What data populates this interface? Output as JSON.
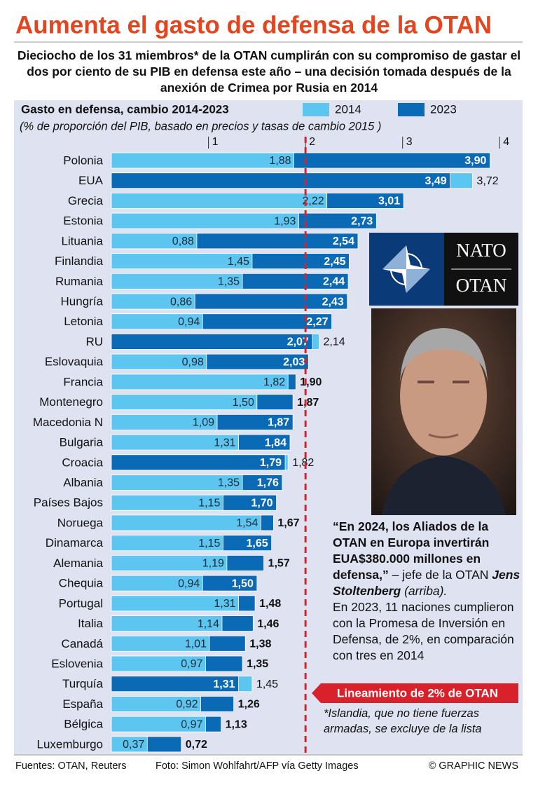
{
  "chart_data": {
    "type": "bar",
    "title": "Aumenta el gasto de defensa de la OTAN",
    "subtitle": "Dieciocho de los 31 miembros* de la OTAN cumplirán con su compromiso de gastar el dos por ciento de su PIB en defensa este año – una decisión tomada después de la anexión de Crimea por Rusia en 2014",
    "axis_title": "Gasto en defensa, cambio 2014-2023",
    "axis_note": "(% de proporción del PIB, basado en  precios y tasas de cambio 2015 )",
    "categories": [
      "Polonia",
      "EUA",
      "Grecia",
      "Estonia",
      "Lituania",
      "Finlandia",
      "Rumania",
      "Hungría",
      "Letonia",
      "RU",
      "Eslovaquia",
      "Francia",
      "Montenegro",
      "Macedonia N",
      "Bulgaria",
      "Croacia",
      "Albania",
      "Países Bajos",
      "Noruega",
      "Dinamarca",
      "Alemania",
      "Chequia",
      "Portugal",
      "Italia",
      "Canadá",
      "Eslovenia",
      "Turquía",
      "España",
      "Bélgica",
      "Luxemburgo"
    ],
    "series": [
      {
        "name": "2014",
        "color": "#5cc6f0",
        "values": [
          1.88,
          3.72,
          2.22,
          1.93,
          0.88,
          1.45,
          1.35,
          0.86,
          0.94,
          2.14,
          0.98,
          1.82,
          1.5,
          1.09,
          1.31,
          1.82,
          1.35,
          1.15,
          1.54,
          1.15,
          1.19,
          0.94,
          1.31,
          1.14,
          1.01,
          0.97,
          1.45,
          0.92,
          0.97,
          0.37
        ],
        "value_labels": [
          "1,88",
          "3,72",
          "2,22",
          "1,93",
          "0,88",
          "1,45",
          "1,35",
          "0,86",
          "0,94",
          "2,14",
          "0,98",
          "1,82",
          "1,50",
          "1,09",
          "1,31",
          "1,82",
          "1,35",
          "1,15",
          "1,54",
          "1,15",
          "1,19",
          "0,94",
          "1,31",
          "1,14",
          "1,01",
          "0,97",
          "1,45",
          "0,92",
          "0,97",
          "0,37"
        ]
      },
      {
        "name": "2023",
        "color": "#0b6ab5",
        "values": [
          3.9,
          3.49,
          3.01,
          2.73,
          2.54,
          2.45,
          2.44,
          2.43,
          2.27,
          2.07,
          2.03,
          1.9,
          1.87,
          1.87,
          1.84,
          1.79,
          1.76,
          1.7,
          1.67,
          1.65,
          1.57,
          1.5,
          1.48,
          1.46,
          1.38,
          1.35,
          1.31,
          1.26,
          1.13,
          0.72
        ],
        "value_labels": [
          "3,90",
          "3,49",
          "3,01",
          "2,73",
          "2,54",
          "2,45",
          "2,44",
          "2,43",
          "2,27",
          "2,07",
          "2,03",
          "1,90",
          "1,87",
          "1,87",
          "1,84",
          "1,79",
          "1,76",
          "1,70",
          "1,67",
          "1,65",
          "1,57",
          "1,50",
          "1,48",
          "1,46",
          "1,38",
          "1,35",
          "1,31",
          "1,26",
          "1,13",
          "0,72"
        ]
      }
    ],
    "xlim": [
      0,
      4.2
    ],
    "xticks": [
      1,
      2,
      3,
      4
    ],
    "reference_line": 2,
    "reference_label": "Lineamiento de 2% de OTAN",
    "logo": {
      "top": "NATO",
      "bottom": "OTAN"
    },
    "quote": {
      "bold": "“En 2024, los Aliados de la OTAN en Europa invertirán EUA$380.000 millones en defensa,”",
      "attribution": " – jefe de la OTAN ",
      "name": "Jens Stoltenberg",
      "after": " (arriba).",
      "text": "En 2023, 11 naciones cumplieron con la Promesa de Inversión en Defensa, de 2%, en comparación con tres en 2014"
    },
    "footnote": "*Islandia, que no tiene fuerzas armadas, se excluye de la lista",
    "sources": "Fuentes: OTAN, Reuters",
    "photo_credit": "Foto:  Simon Wohlfahrt/AFP vía Getty Images",
    "copyright": "© GRAPHIC NEWS"
  }
}
